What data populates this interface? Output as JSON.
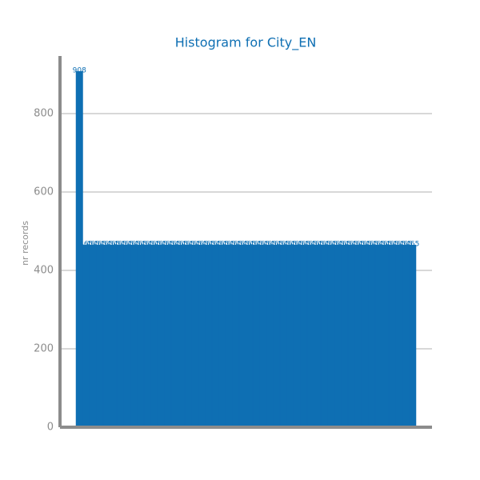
{
  "chart_data": {
    "type": "bar",
    "title": "Histogram for City_EN",
    "ylabel": "nr records",
    "categories": [
      null,
      null,
      null,
      null,
      null,
      null,
      null,
      null,
      null,
      null,
      null,
      null,
      null,
      null,
      null,
      null,
      null,
      null,
      null,
      null,
      null,
      null,
      null,
      null,
      null,
      null,
      null,
      null,
      null,
      null,
      null,
      null,
      null,
      null,
      null,
      null,
      null,
      null,
      null,
      null,
      null,
      null,
      null,
      null,
      null,
      null,
      null,
      null,
      null,
      null
    ],
    "values": [
      908,
      465,
      465,
      465,
      465,
      465,
      465,
      465,
      465,
      465,
      465,
      465,
      465,
      465,
      465,
      465,
      465,
      465,
      465,
      465,
      465,
      465,
      465,
      465,
      465,
      465,
      465,
      465,
      465,
      465,
      465,
      465,
      465,
      465,
      465,
      465,
      465,
      465,
      465,
      465,
      465,
      465,
      465,
      465,
      465,
      465,
      465,
      465,
      465,
      465
    ],
    "color": "#0e6fb3",
    "ylim": [
      0,
      947
    ],
    "yticks": [
      0,
      200,
      400,
      600,
      800
    ],
    "grid": true
  }
}
